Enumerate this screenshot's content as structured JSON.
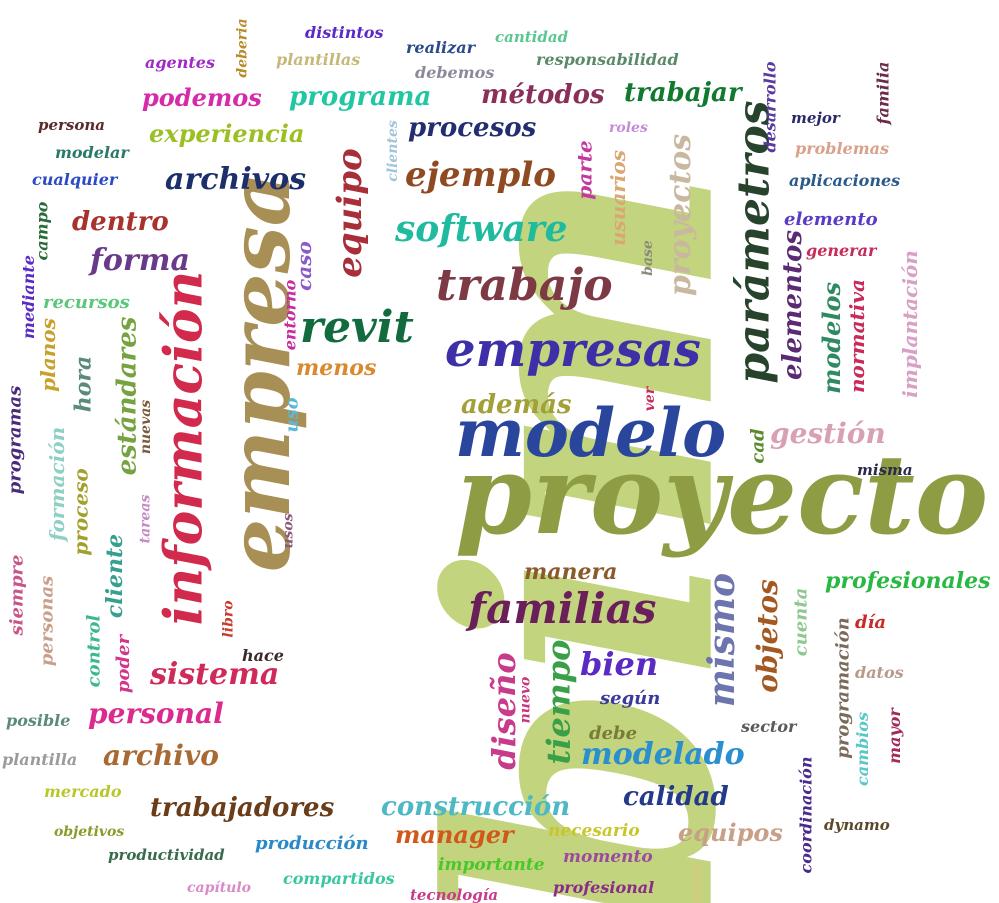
{
  "words": [
    {
      "text": "bim",
      "color": "#c2d47e"
    },
    {
      "text": "proyecto",
      "color": "#8e9d43"
    },
    {
      "text": "empresa",
      "color": "#a88f55"
    },
    {
      "text": "modelo",
      "color": "#2a469c"
    },
    {
      "text": "información",
      "color": "#d22a4d"
    },
    {
      "text": "empresas",
      "color": "#3c2fa7"
    },
    {
      "text": "familias",
      "color": "#6a1e5a"
    },
    {
      "text": "trabajo",
      "color": "#7d3a45"
    },
    {
      "text": "parámetros",
      "color": "#27432c"
    },
    {
      "text": "revit",
      "color": "#116b3e"
    },
    {
      "text": "software",
      "color": "#1fbb9f"
    },
    {
      "text": "equipo",
      "color": "#a82e39"
    },
    {
      "text": "ejemplo",
      "color": "#8f4a22"
    },
    {
      "text": "proyectos",
      "color": "#c8b89f"
    },
    {
      "text": "archivos",
      "color": "#1c2f6a"
    },
    {
      "text": "forma",
      "color": "#6a3a8a"
    },
    {
      "text": "dentro",
      "color": "#a8332e"
    },
    {
      "text": "procesos",
      "color": "#222d72"
    },
    {
      "text": "métodos",
      "color": "#8a2e5a"
    },
    {
      "text": "trabajar",
      "color": "#117a2e"
    },
    {
      "text": "programa",
      "color": "#22c7a2"
    },
    {
      "text": "podemos",
      "color": "#d62aa8"
    },
    {
      "text": "experiencia",
      "color": "#9bc023"
    },
    {
      "text": "elementos",
      "color": "#5a2a73"
    },
    {
      "text": "modelos",
      "color": "#2f8a63"
    },
    {
      "text": "mismo",
      "color": "#6e74ad"
    },
    {
      "text": "objetos",
      "color": "#a35a22"
    },
    {
      "text": "estándares",
      "color": "#76a33f"
    },
    {
      "text": "sistema",
      "color": "#d02a5a"
    },
    {
      "text": "personal",
      "color": "#dd2a8e"
    },
    {
      "text": "archivo",
      "color": "#a86a35"
    },
    {
      "text": "trabajadores",
      "color": "#6a3c18"
    },
    {
      "text": "construcción",
      "color": "#4fb8c5"
    },
    {
      "text": "modelado",
      "color": "#2a8fd0"
    },
    {
      "text": "calidad",
      "color": "#233a8a"
    },
    {
      "text": "bien",
      "color": "#5a2ac2"
    },
    {
      "text": "tiempo",
      "color": "#3aa047"
    },
    {
      "text": "diseño",
      "color": "#c83a8a"
    },
    {
      "text": "gestión",
      "color": "#d9a0b5"
    },
    {
      "text": "además",
      "color": "#a3a03a"
    },
    {
      "text": "manera",
      "color": "#8a5a2a"
    },
    {
      "text": "profesionales",
      "color": "#2ab844"
    },
    {
      "text": "equipos",
      "color": "#c7a087"
    },
    {
      "text": "manager",
      "color": "#d2571a"
    },
    {
      "text": "usuarios",
      "color": "#d9a872"
    },
    {
      "text": "parte",
      "color": "#c23aa0"
    },
    {
      "text": "caso",
      "color": "#8a5ac7"
    },
    {
      "text": "menos",
      "color": "#d98a2e"
    },
    {
      "text": "normativa",
      "color": "#c82a5a"
    },
    {
      "text": "implantación",
      "color": "#d9a0c5"
    },
    {
      "text": "formación",
      "color": "#8fd0c5"
    },
    {
      "text": "proceso",
      "color": "#a0a02a"
    },
    {
      "text": "cliente",
      "color": "#35a08f"
    },
    {
      "text": "planos",
      "color": "#c8a02a"
    },
    {
      "text": "hora",
      "color": "#5a8a7a"
    },
    {
      "text": "recursos",
      "color": "#5ac77a"
    },
    {
      "text": "programas",
      "color": "#4a2a7a"
    },
    {
      "text": "personas",
      "color": "#c8a08a"
    },
    {
      "text": "siempre",
      "color": "#c8558a"
    },
    {
      "text": "control",
      "color": "#3ab88f"
    },
    {
      "text": "poder",
      "color": "#d2358a"
    },
    {
      "text": "cuenta",
      "color": "#8fc88f"
    },
    {
      "text": "programación",
      "color": "#7a6a5a"
    },
    {
      "text": "coordinación",
      "color": "#4a2a8a"
    },
    {
      "text": "cambios",
      "color": "#5ac7c7"
    },
    {
      "text": "mayor",
      "color": "#a02a5a"
    },
    {
      "text": "desarrollo",
      "color": "#5a3aa0"
    },
    {
      "text": "familia",
      "color": "#6a2a4a"
    },
    {
      "text": "clientes",
      "color": "#a0c5d9"
    },
    {
      "text": "deberia",
      "color": "#b88a2a"
    },
    {
      "text": "mediante",
      "color": "#5a2ac2"
    },
    {
      "text": "campo",
      "color": "#2a6a3a"
    },
    {
      "text": "entorno",
      "color": "#c82aa0"
    },
    {
      "text": "uso",
      "color": "#5ab8d9"
    },
    {
      "text": "nuevas",
      "color": "#7a5a3a"
    },
    {
      "text": "tareas",
      "color": "#c58ac5"
    },
    {
      "text": "usos",
      "color": "#8a5a7a"
    },
    {
      "text": "libro",
      "color": "#c83a2a"
    },
    {
      "text": "nuevo",
      "color": "#c8357a"
    },
    {
      "text": "base",
      "color": "#8a8a7a"
    },
    {
      "text": "ver",
      "color": "#c82a5a"
    },
    {
      "text": "cad",
      "color": "#5a8a2a"
    },
    {
      "text": "punto",
      "color": "#d9c87a"
    },
    {
      "text": "distintos",
      "color": "#5a2ac7"
    },
    {
      "text": "agentes",
      "color": "#a02ac7"
    },
    {
      "text": "plantillas",
      "color": "#c7b87a"
    },
    {
      "text": "realizar",
      "color": "#2a4a8a"
    },
    {
      "text": "cantidad",
      "color": "#5ac78f"
    },
    {
      "text": "debemos",
      "color": "#8a8a9b"
    },
    {
      "text": "responsabilidad",
      "color": "#5a8a6a"
    },
    {
      "text": "persona",
      "color": "#5a2a2a"
    },
    {
      "text": "modelar",
      "color": "#2a7a6a"
    },
    {
      "text": "cualquier",
      "color": "#2a4ac7"
    },
    {
      "text": "roles",
      "color": "#c58ad9"
    },
    {
      "text": "mejor",
      "color": "#2a2a6a"
    },
    {
      "text": "problemas",
      "color": "#d9a08a"
    },
    {
      "text": "aplicaciones",
      "color": "#2a5a8a"
    },
    {
      "text": "elemento",
      "color": "#5a3ac7"
    },
    {
      "text": "generar",
      "color": "#c82a5a"
    },
    {
      "text": "misma",
      "color": "#2a2a4a"
    },
    {
      "text": "día",
      "color": "#c82a2a"
    },
    {
      "text": "datos",
      "color": "#b89a8a"
    },
    {
      "text": "sector",
      "color": "#5a5a5a"
    },
    {
      "text": "según",
      "color": "#3a3a9b"
    },
    {
      "text": "debe",
      "color": "#7a7a3a"
    },
    {
      "text": "hace",
      "color": "#3a2a2a"
    },
    {
      "text": "posible",
      "color": "#5a8a7a"
    },
    {
      "text": "plantilla",
      "color": "#9b9b9b"
    },
    {
      "text": "mercado",
      "color": "#b8c72a"
    },
    {
      "text": "objetivos",
      "color": "#8a9b2a"
    },
    {
      "text": "productividad",
      "color": "#3a6a4a"
    },
    {
      "text": "capítulo",
      "color": "#d98ac7"
    },
    {
      "text": "compartidos",
      "color": "#3ac7a0"
    },
    {
      "text": "tecnología",
      "color": "#c83a8a"
    },
    {
      "text": "producción",
      "color": "#2a8ac7"
    },
    {
      "text": "importante",
      "color": "#4ac72a"
    },
    {
      "text": "profesional",
      "color": "#8a2a8a"
    },
    {
      "text": "necesario",
      "color": "#c7c72a"
    },
    {
      "text": "momento",
      "color": "#9b4aa0"
    },
    {
      "text": "dynamo",
      "color": "#5a4a2a"
    }
  ]
}
